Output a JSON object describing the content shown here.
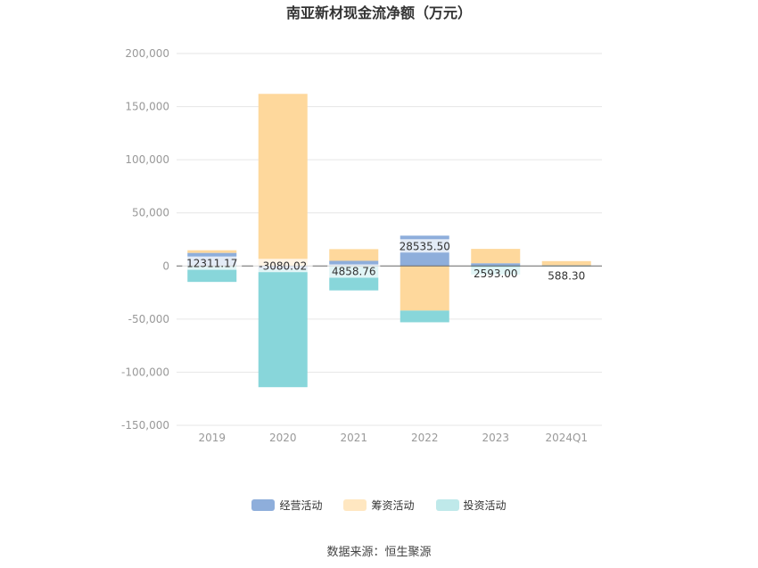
{
  "chart_data": {
    "type": "bar",
    "stacked": true,
    "title": "南亚新材现金流净额（万元）",
    "categories": [
      "2019",
      "2020",
      "2021",
      "2022",
      "2023",
      "2024Q1"
    ],
    "series": [
      {
        "name": "经营活动",
        "color": "#8eaedb",
        "values": [
          12311.17,
          -3080.02,
          4858.76,
          28535.5,
          2593.0,
          588.3
        ]
      },
      {
        "name": "筹资活动",
        "color": "#fed89c",
        "values": [
          2500,
          162000,
          11000,
          -42000,
          13500,
          4000
        ]
      },
      {
        "name": "投资活动",
        "color": "#88d6da",
        "values": [
          -15000,
          -111000,
          -23000,
          -11000,
          -8000,
          -200
        ]
      }
    ],
    "data_labels": [
      "12311.17",
      "-3080.02",
      "4858.76",
      "28535.50",
      "2593.00",
      "588.30"
    ],
    "ylim": [
      -150000,
      200000
    ],
    "yticks": [
      -150000,
      -100000,
      -50000,
      0,
      50000,
      100000,
      150000,
      200000
    ],
    "ytick_labels": [
      "-150,000",
      "-100,000",
      "-50,000",
      "0",
      "50,000",
      "100,000",
      "150,000",
      "200,000"
    ],
    "grid": true,
    "legend_position": "bottom"
  },
  "legend": [
    {
      "label": "经营活动",
      "color": "#8eaedb"
    },
    {
      "label": "筹资活动",
      "color": "#fed89c"
    },
    {
      "label": "投资活动",
      "color": "#bfe9ea"
    }
  ],
  "source": "数据来源：恒生聚源"
}
